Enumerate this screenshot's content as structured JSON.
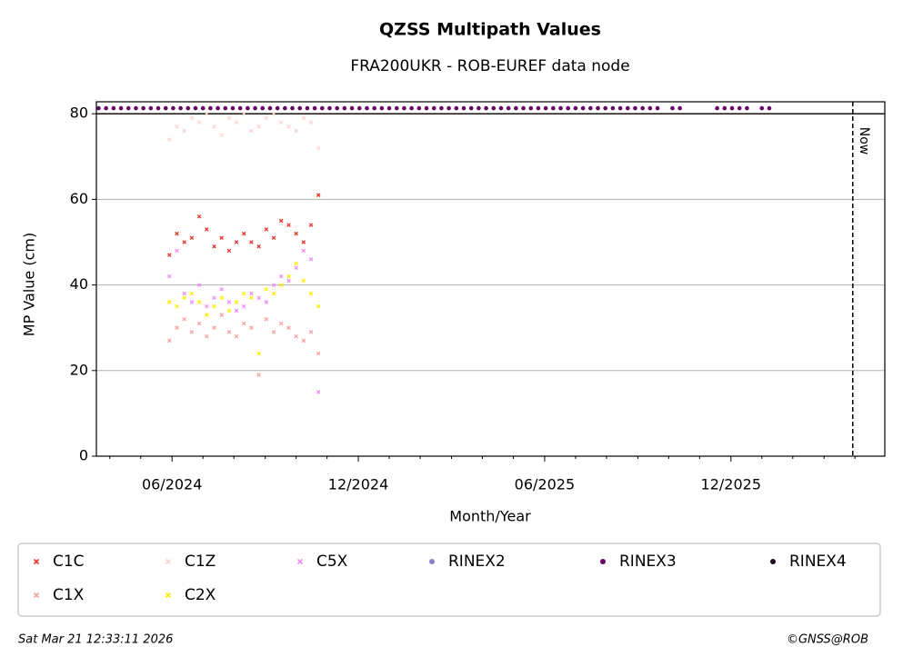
{
  "chart_data": {
    "type": "scatter",
    "title": "QZSS Multipath Values",
    "subtitle": "FRA200UKR - ROB-EUREF data node",
    "x_label": "Month/Year",
    "y_label": "MP Value (cm)",
    "xlim": [
      2024.214,
      2026.33
    ],
    "ylim": [
      0,
      82.8
    ],
    "xticks": [
      {
        "value": 2024.417,
        "label": "06/2024"
      },
      {
        "value": 2024.917,
        "label": "12/2024"
      },
      {
        "value": 2025.417,
        "label": "06/2025"
      },
      {
        "value": 2025.917,
        "label": "12/2025"
      }
    ],
    "xminorticks": [
      2024.25,
      2024.333,
      2024.5,
      2024.583,
      2024.667,
      2024.75,
      2024.833,
      2025.0,
      2025.083,
      2025.167,
      2025.25,
      2025.333,
      2025.5,
      2025.583,
      2025.667,
      2025.75,
      2025.833,
      2026.0,
      2026.083,
      2026.167,
      2026.25
    ],
    "yticks": [
      0,
      20,
      40,
      60,
      80
    ],
    "grid": true,
    "hline": 80,
    "now": {
      "x": 2026.244,
      "label": "Now"
    },
    "legend": "bottom",
    "series": [
      {
        "name": "C1C",
        "color": "#e8342a",
        "marker": "x",
        "x": [
          2024.41,
          2024.43,
          2024.45,
          2024.47,
          2024.49,
          2024.51,
          2024.53,
          2024.55,
          2024.57,
          2024.59,
          2024.61,
          2024.63,
          2024.65,
          2024.67,
          2024.69,
          2024.71,
          2024.73,
          2024.75,
          2024.77,
          2024.79,
          2024.81
        ],
        "values": [
          47,
          52,
          50,
          51,
          56,
          53,
          49,
          51,
          48,
          50,
          52,
          50,
          49,
          53,
          51,
          55,
          54,
          52,
          50,
          54,
          61
        ]
      },
      {
        "name": "C1X",
        "color": "#f5a3a0",
        "marker": "x",
        "x": [
          2024.41,
          2024.43,
          2024.45,
          2024.47,
          2024.49,
          2024.51,
          2024.53,
          2024.55,
          2024.57,
          2024.59,
          2024.61,
          2024.63,
          2024.65,
          2024.67,
          2024.69,
          2024.71,
          2024.73,
          2024.75,
          2024.77,
          2024.79,
          2024.81
        ],
        "values": [
          27,
          30,
          32,
          29,
          31,
          28,
          30,
          33,
          29,
          28,
          31,
          30,
          19,
          32,
          29,
          31,
          30,
          28,
          27,
          29,
          24
        ]
      },
      {
        "name": "C1Z",
        "color": "#fbd5d3",
        "marker": "x",
        "x": [
          2024.41,
          2024.43,
          2024.45,
          2024.47,
          2024.49,
          2024.51,
          2024.53,
          2024.55,
          2024.57,
          2024.59,
          2024.61,
          2024.63,
          2024.65,
          2024.67,
          2024.69,
          2024.71,
          2024.73,
          2024.75,
          2024.77,
          2024.79,
          2024.81
        ],
        "values": [
          74,
          77,
          76,
          79,
          78,
          80,
          77,
          75,
          79,
          78,
          80,
          76,
          77,
          79,
          80,
          78,
          77,
          76,
          79,
          78,
          72
        ]
      },
      {
        "name": "C2X",
        "color": "#ffee00",
        "marker": "x",
        "x": [
          2024.41,
          2024.43,
          2024.45,
          2024.47,
          2024.49,
          2024.51,
          2024.53,
          2024.55,
          2024.57,
          2024.59,
          2024.61,
          2024.63,
          2024.65,
          2024.67,
          2024.69,
          2024.71,
          2024.73,
          2024.75,
          2024.77,
          2024.79,
          2024.81
        ],
        "values": [
          36,
          35,
          37,
          38,
          36,
          33,
          35,
          37,
          34,
          36,
          38,
          37,
          24,
          39,
          38,
          40,
          42,
          45,
          41,
          38,
          35
        ]
      },
      {
        "name": "C5X",
        "color": "#f08cf8",
        "marker": "x",
        "x": [
          2024.41,
          2024.43,
          2024.45,
          2024.47,
          2024.49,
          2024.51,
          2024.53,
          2024.55,
          2024.57,
          2024.59,
          2024.61,
          2024.63,
          2024.65,
          2024.67,
          2024.69,
          2024.71,
          2024.73,
          2024.75,
          2024.77,
          2024.79,
          2024.81
        ],
        "values": [
          42,
          48,
          38,
          36,
          40,
          35,
          37,
          39,
          36,
          34,
          35,
          38,
          37,
          36,
          40,
          42,
          41,
          44,
          48,
          46,
          15
        ]
      },
      {
        "name": "RINEX2",
        "color": "#8b7fc8",
        "marker": "circle",
        "x": [],
        "values": []
      },
      {
        "name": "RINEX3",
        "color": "#660066",
        "marker": "circle",
        "x": [
          2024.22,
          2024.24,
          2024.26,
          2024.28,
          2024.3,
          2024.32,
          2024.34,
          2024.36,
          2024.38,
          2024.4,
          2024.42,
          2024.44,
          2024.46,
          2024.48,
          2024.5,
          2024.52,
          2024.54,
          2024.56,
          2024.58,
          2024.6,
          2024.62,
          2024.64,
          2024.66,
          2024.68,
          2024.7,
          2024.72,
          2024.74,
          2024.76,
          2024.78,
          2024.8,
          2024.82,
          2024.84,
          2024.86,
          2024.88,
          2024.9,
          2024.92,
          2024.94,
          2024.96,
          2024.98,
          2025.0,
          2025.02,
          2025.04,
          2025.06,
          2025.08,
          2025.1,
          2025.12,
          2025.14,
          2025.16,
          2025.18,
          2025.2,
          2025.22,
          2025.24,
          2025.26,
          2025.28,
          2025.3,
          2025.32,
          2025.34,
          2025.36,
          2025.38,
          2025.4,
          2025.42,
          2025.44,
          2025.46,
          2025.48,
          2025.5,
          2025.52,
          2025.54,
          2025.56,
          2025.58,
          2025.6,
          2025.62,
          2025.64,
          2025.66,
          2025.68,
          2025.7,
          2025.72,
          2025.76,
          2025.78,
          2025.88,
          2025.9,
          2025.92,
          2025.94,
          2025.96,
          2026.0,
          2026.02
        ],
        "values": [
          81.3,
          81.3,
          81.3,
          81.3,
          81.3,
          81.3,
          81.3,
          81.3,
          81.3,
          81.3,
          81.3,
          81.3,
          81.3,
          81.3,
          81.3,
          81.3,
          81.3,
          81.3,
          81.3,
          81.3,
          81.3,
          81.3,
          81.3,
          81.3,
          81.3,
          81.3,
          81.3,
          81.3,
          81.3,
          81.3,
          81.3,
          81.3,
          81.3,
          81.3,
          81.3,
          81.3,
          81.3,
          81.3,
          81.3,
          81.3,
          81.3,
          81.3,
          81.3,
          81.3,
          81.3,
          81.3,
          81.3,
          81.3,
          81.3,
          81.3,
          81.3,
          81.3,
          81.3,
          81.3,
          81.3,
          81.3,
          81.3,
          81.3,
          81.3,
          81.3,
          81.3,
          81.3,
          81.3,
          81.3,
          81.3,
          81.3,
          81.3,
          81.3,
          81.3,
          81.3,
          81.3,
          81.3,
          81.3,
          81.3,
          81.3,
          81.3,
          81.3,
          81.3,
          81.3,
          81.3,
          81.3,
          81.3,
          81.3,
          81.3,
          81.3
        ]
      },
      {
        "name": "RINEX4",
        "color": "#1a0a1a",
        "marker": "circle",
        "x": [],
        "values": []
      }
    ],
    "footer_left": "Sat Mar 21 12:33:11 2026",
    "footer_right": "©GNSS@ROB"
  }
}
